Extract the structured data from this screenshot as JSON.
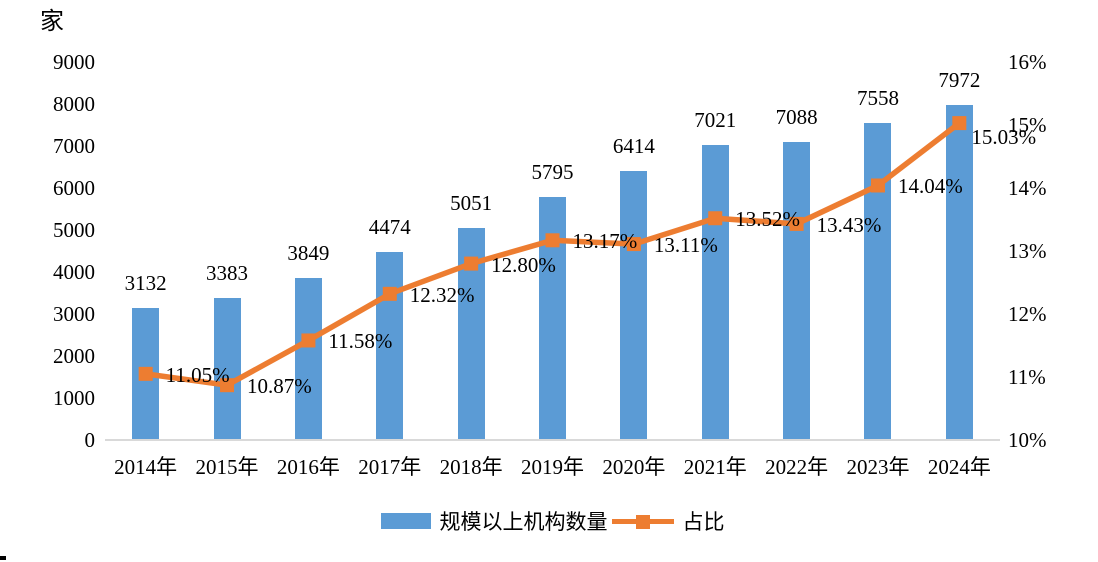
{
  "chart_data": {
    "type": "combo-bar-line",
    "categories": [
      "2014年",
      "2015年",
      "2016年",
      "2017年",
      "2018年",
      "2019年",
      "2020年",
      "2021年",
      "2022年",
      "2023年",
      "2024年"
    ],
    "series": [
      {
        "name": "规模以上机构数量",
        "type": "bar",
        "axis": "left",
        "color": "#5B9BD5",
        "values": [
          3132,
          3383,
          3849,
          4474,
          5051,
          5795,
          6414,
          7021,
          7088,
          7558,
          7972
        ],
        "data_labels": [
          "3132",
          "3383",
          "3849",
          "4474",
          "5051",
          "5795",
          "6414",
          "7021",
          "7088",
          "7558",
          "7972"
        ]
      },
      {
        "name": "占比",
        "type": "line",
        "axis": "right",
        "color": "#ED7D31",
        "marker": "square",
        "values": [
          11.05,
          10.87,
          11.58,
          12.32,
          12.8,
          13.17,
          13.11,
          13.52,
          13.43,
          14.04,
          15.03
        ],
        "data_labels": [
          "11.05%",
          "10.87%",
          "11.58%",
          "12.32%",
          "12.80%",
          "13.17%",
          "13.11%",
          "13.52%",
          "13.43%",
          "14.04%",
          "15.03%"
        ]
      }
    ],
    "left_axis": {
      "title": "家",
      "min": 0,
      "max": 9000,
      "tick_labels": [
        "9000",
        "8000",
        "7000",
        "6000",
        "5000",
        "4000",
        "3000",
        "2000",
        "1000",
        "0"
      ]
    },
    "right_axis": {
      "min": 10,
      "max": 16,
      "tick_labels": [
        "16%",
        "15%",
        "14%",
        "13%",
        "12%",
        "11%",
        "10%"
      ]
    },
    "grid": false,
    "legend_position": "bottom",
    "background": "#FFFFFF",
    "text_color": "#000000",
    "axis_line_color": "#D9D9D9"
  }
}
